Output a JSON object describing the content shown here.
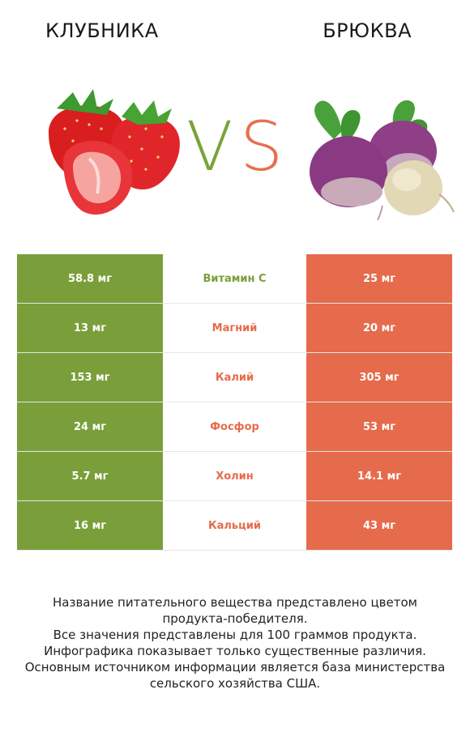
{
  "header": {
    "left_title": "КЛУБНИКА",
    "right_title": "БРЮКВА",
    "vs_v": "V",
    "vs_s": "S"
  },
  "colors": {
    "left": "#7a9f3a",
    "right": "#e56b4c",
    "vs_v": "#7aa33a",
    "vs_s": "#e5704f"
  },
  "rows": [
    {
      "left": "58.8 мг",
      "nutrient": "Витамин C",
      "right": "25 мг",
      "winner": "left"
    },
    {
      "left": "13 мг",
      "nutrient": "Магний",
      "right": "20 мг",
      "winner": "right"
    },
    {
      "left": "153 мг",
      "nutrient": "Калий",
      "right": "305 мг",
      "winner": "right"
    },
    {
      "left": "24 мг",
      "nutrient": "Фосфор",
      "right": "53 мг",
      "winner": "right"
    },
    {
      "left": "5.7 мг",
      "nutrient": "Холин",
      "right": "14.1 мг",
      "winner": "right"
    },
    {
      "left": "16 мг",
      "nutrient": "Кальций",
      "right": "43 мг",
      "winner": "right"
    }
  ],
  "footer": {
    "line1": "Название питательного вещества представлено цветом",
    "line2": "продукта-победителя.",
    "line3": "Все значения представлены для 100 граммов продукта.",
    "line4": "Инфографика показывает только существенные различия.",
    "line5": "Основным источником информации является база министерства",
    "line6": "сельского хозяйства США."
  }
}
